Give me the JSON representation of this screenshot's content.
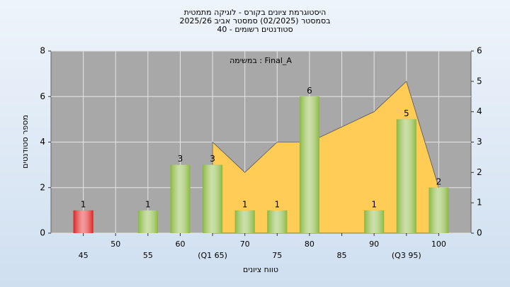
{
  "chart_data": {
    "type": "bar",
    "title": [
      "היסטוגרמת ציונים בקורס - לוגיקה מתמטית",
      "בסמסטר  (02/2025)  סמסטר אביב 2025/26",
      "סטודנטים רשומים - 40"
    ],
    "annotation": "Final_A : במשימה",
    "x_label": "טווח ציונים",
    "y_label": "מספר סטודנטים",
    "categories": [
      "45",
      "50",
      "55",
      "60",
      "(Q1 65)",
      "70",
      "75",
      "80",
      "85",
      "90",
      "(Q3 95)",
      "100"
    ],
    "series": [
      {
        "type": "bar",
        "colors": [
          "#dd2222",
          "#8ab840",
          "#8ab840",
          "#8ab840",
          "#8ab840",
          "#8ab840",
          "#8ab840",
          "#8ab840",
          "#8ab840",
          "#8ab840",
          "#8ab840",
          "#8ab840"
        ],
        "values": [
          1,
          0,
          1,
          3,
          3,
          1,
          1,
          6,
          0,
          1,
          5,
          2
        ]
      },
      {
        "type": "area",
        "axis": "y2",
        "color": "#ffcc55",
        "values": [
          null,
          null,
          null,
          null,
          3,
          2,
          3,
          3,
          3.5,
          4,
          5,
          1.5
        ]
      }
    ],
    "ylim": [
      0,
      8
    ],
    "yticks": [
      0,
      2,
      4,
      6,
      8
    ],
    "y2lim": [
      0,
      6
    ],
    "y2ticks": [
      0,
      1,
      2,
      3,
      4,
      5,
      6
    ],
    "grid": true
  }
}
